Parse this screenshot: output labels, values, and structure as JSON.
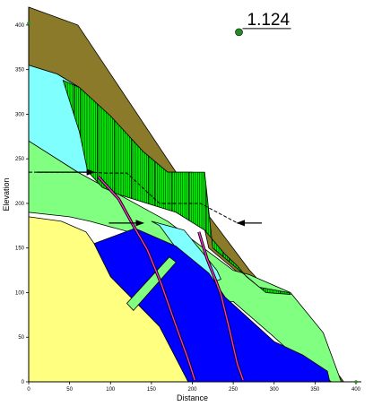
{
  "chart_data": {
    "type": "slope-stability-section",
    "xlabel": "Distance",
    "ylabel": "Elevation",
    "xlim": [
      0,
      400
    ],
    "ylim": [
      0,
      420
    ],
    "x_ticks": [
      0,
      50,
      100,
      150,
      200,
      250,
      300,
      350,
      400
    ],
    "y_ticks": [
      0,
      50,
      100,
      150,
      200,
      250,
      300,
      350,
      400
    ],
    "factor_of_safety": "1.124",
    "slip_center": {
      "x": 257,
      "y": 392
    },
    "colors": {
      "brown": "#8b7a2a",
      "cyan": "#80ffff",
      "light_green": "#80ff80",
      "yellow": "#ffff80",
      "blue": "#0000ff",
      "bright_green": "#00ee00",
      "slip_pink": "#ff33cc",
      "center_green": "#228b22"
    },
    "layers": [
      {
        "color": "brown",
        "points": [
          [
            0,
            420
          ],
          [
            0,
            355
          ],
          [
            35,
            345
          ],
          [
            62,
            330
          ],
          [
            72,
            235
          ],
          [
            200,
            235
          ],
          [
            220,
            150
          ],
          [
            285,
            100
          ],
          [
            318,
            100
          ],
          [
            345,
            50
          ],
          [
            365,
            25
          ],
          [
            385,
            0
          ],
          [
            370,
            0
          ],
          [
            300,
            95
          ],
          [
            270,
            125
          ],
          [
            180,
            235
          ],
          [
            60,
            400
          ]
        ]
      },
      {
        "color": "cyan",
        "points": [
          [
            0,
            355
          ],
          [
            35,
            345
          ],
          [
            62,
            330
          ],
          [
            76,
            235
          ],
          [
            60,
            235
          ],
          [
            0,
            270
          ]
        ]
      },
      {
        "color": "light_green",
        "points": [
          [
            0,
            270
          ],
          [
            60,
            235
          ],
          [
            170,
            180
          ],
          [
            250,
            125
          ],
          [
            270,
            120
          ],
          [
            320,
            100
          ],
          [
            360,
            55
          ],
          [
            382,
            0
          ],
          [
            370,
            0
          ],
          [
            330,
            25
          ],
          [
            300,
            50
          ],
          [
            250,
            90
          ],
          [
            225,
            90
          ],
          [
            135,
            165
          ],
          [
            75,
            180
          ],
          [
            50,
            185
          ],
          [
            0,
            190
          ]
        ]
      },
      {
        "color": "cyan",
        "points": [
          [
            150,
            180
          ],
          [
            190,
            170
          ],
          [
            230,
            125
          ],
          [
            235,
            115
          ],
          [
            220,
            110
          ],
          [
            180,
            150
          ],
          [
            160,
            175
          ]
        ]
      },
      {
        "color": "yellow",
        "points": [
          [
            0,
            185
          ],
          [
            40,
            180
          ],
          [
            70,
            168
          ],
          [
            80,
            155
          ],
          [
            100,
            118
          ],
          [
            130,
            90
          ],
          [
            160,
            62
          ],
          [
            195,
            0
          ],
          [
            0,
            0
          ]
        ]
      },
      {
        "color": "blue",
        "points": [
          [
            80,
            155
          ],
          [
            130,
            172
          ],
          [
            180,
            152
          ],
          [
            220,
            122
          ],
          [
            240,
            95
          ],
          [
            300,
            45
          ],
          [
            335,
            30
          ],
          [
            365,
            12
          ],
          [
            368,
            0
          ],
          [
            195,
            0
          ],
          [
            160,
            62
          ],
          [
            130,
            90
          ],
          [
            100,
            118
          ]
        ]
      },
      {
        "color": "light_green",
        "points": [
          [
            120,
            88
          ],
          [
            172,
            140
          ],
          [
            180,
            134
          ],
          [
            128,
            80
          ]
        ]
      },
      {
        "color": "bright_green",
        "points": [
          [
            42,
            338
          ],
          [
            62,
            330
          ],
          [
            100,
            298
          ],
          [
            140,
            258
          ],
          [
            170,
            235
          ],
          [
            215,
            235
          ],
          [
            225,
            150
          ],
          [
            290,
            100
          ],
          [
            320,
            98
          ],
          [
            318,
            100
          ],
          [
            300,
            103
          ],
          [
            282,
            106
          ],
          [
            266,
            118
          ],
          [
            255,
            130
          ],
          [
            240,
            143
          ],
          [
            215,
            170
          ],
          [
            180,
            190
          ],
          [
            145,
            200
          ],
          [
            110,
            210
          ],
          [
            90,
            218
          ],
          [
            72,
            236
          ],
          [
            62,
            280
          ],
          [
            50,
            315
          ]
        ]
      }
    ],
    "slip_surfaces": [
      {
        "points": [
          [
            85,
            230
          ],
          [
            110,
            205
          ],
          [
            128,
            175
          ],
          [
            145,
            148
          ],
          [
            162,
            110
          ],
          [
            178,
            68
          ],
          [
            195,
            25
          ],
          [
            203,
            2
          ]
        ]
      },
      {
        "points": [
          [
            208,
            168
          ],
          [
            218,
            138
          ],
          [
            228,
            115
          ],
          [
            235,
            98
          ],
          [
            245,
            60
          ],
          [
            255,
            20
          ],
          [
            262,
            2
          ]
        ]
      }
    ],
    "water_table": {
      "points": [
        [
          0,
          235
        ],
        [
          75,
          235
        ],
        [
          95,
          234
        ],
        [
          120,
          234
        ],
        [
          160,
          200
        ],
        [
          210,
          200
        ],
        [
          255,
          178
        ],
        [
          262,
          178
        ]
      ]
    },
    "load_arrows": [
      {
        "from": [
          10,
          235
        ],
        "to": [
          80,
          235
        ]
      },
      {
        "from": [
          98,
          178
        ],
        "to": [
          140,
          178
        ]
      },
      {
        "from": [
          285,
          178
        ],
        "to": [
          255,
          178
        ]
      }
    ]
  }
}
